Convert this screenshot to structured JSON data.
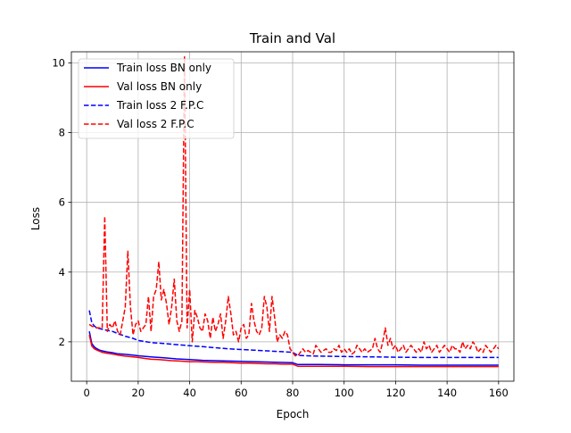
{
  "chart_data": {
    "type": "line",
    "title": "Train and Val",
    "xlabel": "Epoch",
    "ylabel": "Loss",
    "xlim": [
      -5.95,
      165.95
    ],
    "ylim": [
      0.87,
      10.32
    ],
    "xticks": [
      0,
      20,
      40,
      60,
      80,
      100,
      120,
      140,
      160
    ],
    "yticks": [
      2,
      4,
      6,
      8,
      10
    ],
    "grid": true,
    "legend_placement": "upper-left",
    "series": [
      {
        "name": "Train loss BN only",
        "color": "#0000ff",
        "dash": "solid",
        "x": [
          1,
          2,
          3,
          4,
          5,
          6,
          8,
          10,
          12,
          15,
          18,
          20,
          25,
          30,
          35,
          40,
          45,
          50,
          55,
          60,
          65,
          70,
          75,
          80,
          82,
          85,
          90,
          100,
          110,
          120,
          130,
          140,
          150,
          160
        ],
        "y": [
          2.3,
          1.95,
          1.85,
          1.8,
          1.76,
          1.74,
          1.71,
          1.69,
          1.66,
          1.64,
          1.62,
          1.6,
          1.57,
          1.54,
          1.51,
          1.49,
          1.47,
          1.46,
          1.45,
          1.44,
          1.43,
          1.42,
          1.41,
          1.4,
          1.35,
          1.35,
          1.35,
          1.34,
          1.34,
          1.34,
          1.33,
          1.33,
          1.33,
          1.33
        ]
      },
      {
        "name": "Val loss BN only",
        "color": "#ff0000",
        "dash": "solid",
        "x": [
          1,
          2,
          3,
          4,
          5,
          6,
          8,
          10,
          12,
          15,
          18,
          20,
          22,
          25,
          28,
          30,
          33,
          36,
          40,
          43,
          46,
          50,
          53,
          56,
          60,
          63,
          66,
          70,
          73,
          76,
          80,
          82,
          90,
          100,
          110,
          120,
          130,
          140,
          150,
          160
        ],
        "y": [
          2.2,
          1.88,
          1.8,
          1.76,
          1.73,
          1.7,
          1.67,
          1.65,
          1.62,
          1.59,
          1.57,
          1.55,
          1.53,
          1.5,
          1.49,
          1.48,
          1.46,
          1.45,
          1.43,
          1.43,
          1.42,
          1.41,
          1.41,
          1.4,
          1.39,
          1.39,
          1.38,
          1.37,
          1.37,
          1.36,
          1.36,
          1.3,
          1.3,
          1.3,
          1.29,
          1.29,
          1.29,
          1.29,
          1.29,
          1.29
        ]
      },
      {
        "name": "Train loss 2 F.P.C",
        "color": "#0000ff",
        "dash": "dashed",
        "x": [
          1,
          2,
          3,
          4,
          5,
          6,
          8,
          10,
          12,
          15,
          18,
          20,
          25,
          30,
          35,
          40,
          45,
          50,
          55,
          60,
          65,
          70,
          75,
          80,
          82,
          85,
          90,
          100,
          110,
          120,
          130,
          140,
          150,
          160
        ],
        "y": [
          2.9,
          2.55,
          2.45,
          2.4,
          2.38,
          2.36,
          2.33,
          2.3,
          2.24,
          2.16,
          2.1,
          2.04,
          1.98,
          1.95,
          1.92,
          1.89,
          1.86,
          1.83,
          1.8,
          1.78,
          1.76,
          1.74,
          1.72,
          1.7,
          1.61,
          1.6,
          1.59,
          1.58,
          1.57,
          1.56,
          1.55,
          1.55,
          1.55,
          1.55
        ]
      },
      {
        "name": "Val loss 2 F.P.C",
        "color": "#ff0000",
        "dash": "dashed",
        "x": [
          1,
          2,
          3,
          4,
          5,
          6,
          7,
          8,
          9,
          10,
          11,
          12,
          13,
          14,
          15,
          16,
          17,
          18,
          19,
          20,
          21,
          22,
          23,
          24,
          25,
          26,
          27,
          28,
          29,
          30,
          31,
          32,
          33,
          34,
          35,
          36,
          37,
          38,
          39,
          40,
          41,
          42,
          43,
          44,
          45,
          46,
          47,
          48,
          49,
          50,
          51,
          52,
          53,
          54,
          55,
          56,
          57,
          58,
          59,
          60,
          61,
          62,
          63,
          64,
          65,
          66,
          67,
          68,
          69,
          70,
          71,
          72,
          73,
          74,
          75,
          76,
          77,
          78,
          79,
          80,
          81,
          82,
          83,
          84,
          85,
          86,
          87,
          88,
          89,
          90,
          91,
          92,
          93,
          94,
          95,
          96,
          97,
          98,
          99,
          100,
          101,
          102,
          103,
          104,
          105,
          106,
          107,
          108,
          109,
          110,
          111,
          112,
          113,
          114,
          115,
          116,
          117,
          118,
          119,
          120,
          121,
          122,
          123,
          124,
          125,
          126,
          127,
          128,
          129,
          130,
          131,
          132,
          133,
          134,
          135,
          136,
          137,
          138,
          139,
          140,
          141,
          142,
          143,
          144,
          145,
          146,
          147,
          148,
          149,
          150,
          151,
          152,
          153,
          154,
          155,
          156,
          157,
          158,
          159,
          160
        ],
        "y": [
          2.5,
          2.45,
          2.42,
          2.4,
          2.4,
          2.38,
          5.6,
          2.3,
          2.5,
          2.4,
          2.6,
          2.3,
          2.2,
          2.6,
          3.0,
          4.6,
          3.0,
          2.2,
          2.5,
          2.6,
          2.3,
          2.4,
          2.5,
          3.3,
          2.3,
          3.3,
          3.5,
          4.3,
          3.2,
          3.5,
          3.1,
          2.5,
          3.0,
          3.8,
          2.6,
          2.3,
          2.6,
          10.2,
          2.4,
          3.5,
          2.0,
          2.9,
          2.7,
          2.4,
          2.3,
          2.8,
          2.6,
          2.1,
          2.7,
          2.3,
          2.5,
          2.8,
          2.1,
          2.6,
          3.3,
          2.8,
          2.2,
          2.3,
          2.0,
          2.4,
          2.5,
          2.1,
          2.2,
          3.1,
          2.6,
          2.3,
          2.2,
          2.4,
          3.3,
          3.0,
          2.3,
          3.3,
          2.7,
          2.0,
          2.2,
          2.1,
          2.3,
          2.2,
          1.8,
          1.7,
          1.6,
          1.6,
          1.7,
          1.8,
          1.7,
          1.75,
          1.7,
          1.65,
          1.9,
          1.8,
          1.7,
          1.75,
          1.8,
          1.7,
          1.7,
          1.8,
          1.75,
          1.9,
          1.7,
          1.8,
          1.7,
          1.8,
          1.65,
          1.7,
          1.9,
          1.8,
          1.7,
          1.8,
          1.7,
          1.75,
          1.8,
          2.1,
          1.8,
          1.7,
          2.0,
          2.4,
          1.9,
          2.1,
          1.8,
          1.9,
          1.7,
          1.8,
          1.9,
          1.7,
          1.8,
          1.9,
          1.8,
          1.7,
          1.8,
          1.7,
          2.0,
          1.8,
          1.9,
          1.7,
          1.8,
          1.9,
          1.7,
          1.8,
          1.9,
          1.8,
          1.7,
          1.9,
          1.8,
          1.8,
          1.7,
          2.0,
          1.8,
          1.9,
          1.8,
          2.0,
          1.9,
          1.7,
          1.8,
          1.7,
          1.9,
          1.8,
          1.7,
          1.8,
          1.9,
          1.8
        ]
      }
    ]
  }
}
